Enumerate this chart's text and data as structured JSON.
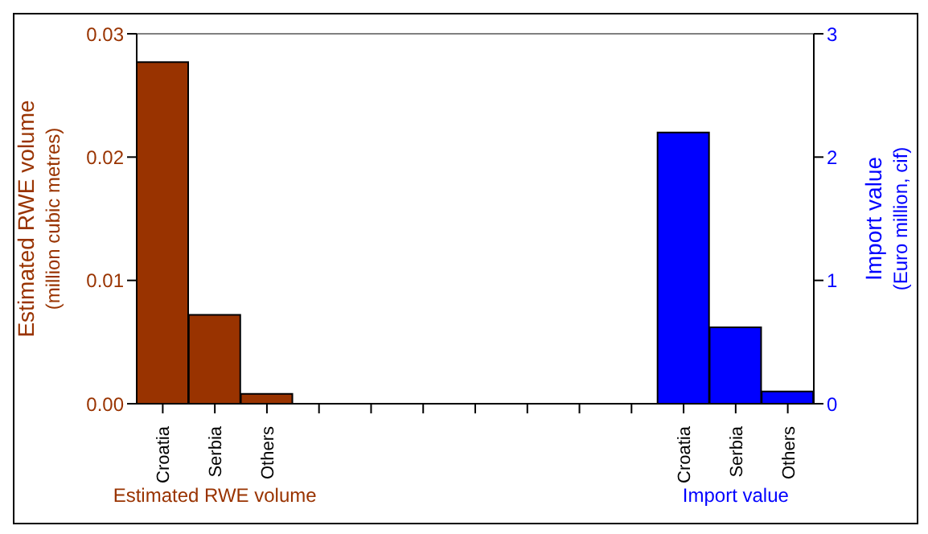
{
  "chart_data": {
    "type": "bar",
    "ylabel": "Estimated RWE volume\n(million cubic metres)",
    "y2label": "Import value\n(Euro million, cif)",
    "categories": [
      "Croatia",
      "Serbia",
      "Others",
      null,
      null,
      null,
      null,
      null,
      null,
      null,
      "Croatia",
      "Serbia",
      "Others"
    ],
    "series": [
      {
        "name": "Estimated RWE volume",
        "color": "#993300",
        "values": [
          0.0277,
          0.0072,
          0.0008,
          null,
          null,
          null,
          null,
          null,
          null,
          null,
          null,
          null,
          null
        ]
      },
      {
        "name": "Import value",
        "color": "#0000ff",
        "axis": "y2",
        "values": [
          null,
          null,
          null,
          null,
          null,
          null,
          null,
          null,
          null,
          null,
          2.2,
          0.62,
          0.1
        ]
      }
    ],
    "ylim": [
      0,
      0.03
    ],
    "yticks": [
      {
        "value": 0,
        "label": "0.00"
      },
      {
        "value": 0.01,
        "label": "0.01"
      },
      {
        "value": 0.02,
        "label": "0.02"
      },
      {
        "value": 0.03,
        "label": "0.03"
      }
    ],
    "y2lim": [
      0,
      3
    ],
    "y2ticks": [
      0,
      1,
      2,
      3
    ]
  }
}
